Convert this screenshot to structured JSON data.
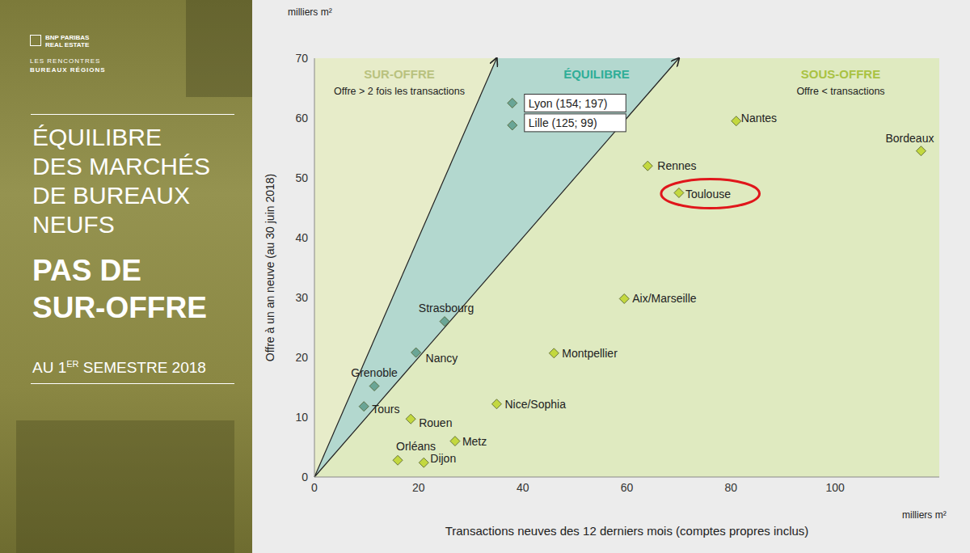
{
  "chart_data": {
    "type": "scatter",
    "x_label": "Transactions neuves des 12 derniers mois (comptes propres inclus)",
    "y_label": "Offre à un an neuve (au 30 juin 2018)",
    "x_unit": "milliers m²",
    "y_unit": "milliers m²",
    "labels": [
      "Lyon (154; 197)",
      "Lille (125; 99)",
      "Nantes",
      "Bordeaux",
      "Rennes",
      "Toulouse",
      "Aix/Marseille",
      "Strasbourg",
      "Nancy",
      "Montpellier",
      "Grenoble",
      "Tours",
      "Rouen",
      "Nice/Sophia",
      "Metz",
      "Orléans",
      "Dijon"
    ],
    "x": [
      38,
      38,
      81,
      116.5,
      64,
      70,
      59.5,
      25,
      19.5,
      46,
      11.5,
      9.5,
      18.5,
      35,
      27,
      16,
      21
    ],
    "values": [
      62.5,
      58.8,
      59.5,
      54.5,
      52,
      47.5,
      29.8,
      26,
      20.8,
      20.7,
      15.2,
      11.8,
      9.7,
      12.2,
      6,
      2.8,
      2.4
    ],
    "colors": [
      "#6aa596",
      "#6aa596",
      "#c3d83f",
      "#c3d83f",
      "#c3d83f",
      "#c3d83f",
      "#c3d83f",
      "#6aa596",
      "#6aa596",
      "#c3d83f",
      "#6aa596",
      "#6aa596",
      "#c3d83f",
      "#c3d83f",
      "#c3d83f",
      "#c3d83f",
      "#c3d83f"
    ],
    "marker": "diamond",
    "xlim": [
      0,
      120
    ],
    "xticks": [
      0,
      20,
      40,
      60,
      80,
      100
    ],
    "ylim": [
      0,
      70
    ],
    "yticks": [
      0,
      10,
      20,
      30,
      40,
      50,
      60,
      70
    ],
    "grid": false,
    "zones": [
      {
        "label": "SUR-OFFRE",
        "note": "Offre > 2 fois les transactions",
        "color": "#e7ecc9"
      },
      {
        "label": "ÉQUILIBRE",
        "color": "#b3d8cf"
      },
      {
        "label": "SOUS-OFFRE",
        "note": "Offre < transactions",
        "color": "#dfeac0"
      }
    ],
    "guide_slopes": [
      2,
      1
    ],
    "highlight": "Toulouse"
  },
  "side_panel": {
    "logo": [
      "BNP PARIBAS",
      "REAL ESTATE"
    ],
    "event": [
      "LES RENCONTRES",
      "BUREAUX RÉGIONS"
    ],
    "title_lines": [
      "ÉQUILIBRE",
      "DES MARCHÉS",
      "DE BUREAUX",
      "NEUFS"
    ],
    "headline_lines": [
      "PAS DE",
      "SUR-OFFRE"
    ],
    "period": {
      "before": "AU 1",
      "sup": "ER",
      "after": " SEMESTRE 2018"
    }
  }
}
